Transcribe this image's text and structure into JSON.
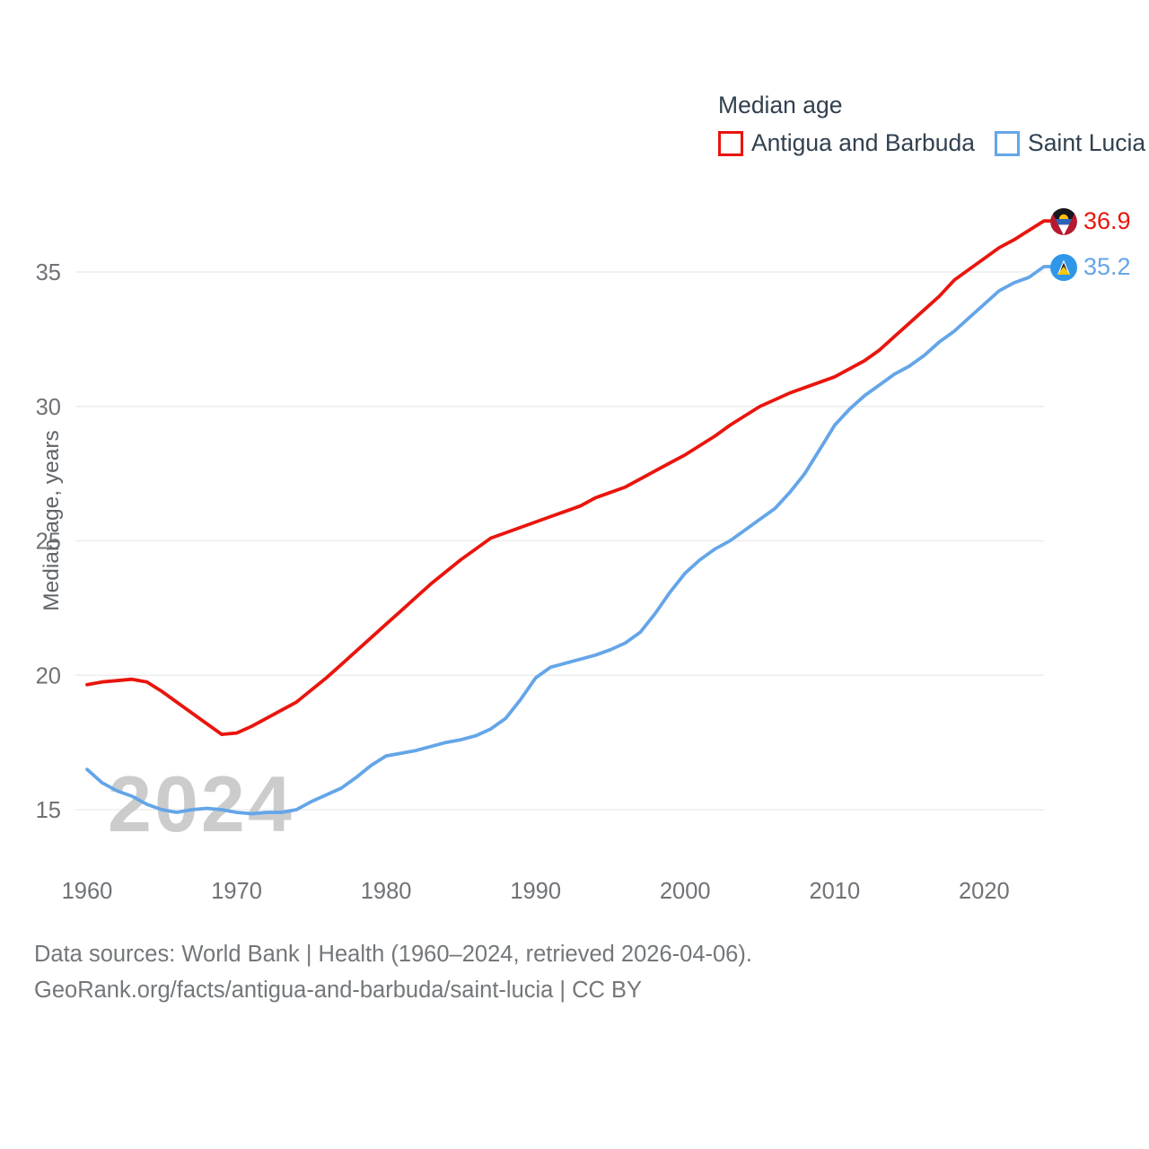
{
  "watermark": "2024",
  "colors": {
    "grid": "#ededed",
    "tick_text": "#6f7276",
    "heading_text": "#31404f",
    "footer_text": "#73777a",
    "watermark_text": "#c4c4c4",
    "antigua_red": "#e9150d",
    "saint_lucia_blue": "#64a5e8"
  },
  "footer": {
    "line1": "Data sources: World Bank | Health (1960–2024, retrieved 2026-04-06).",
    "line2": "GeoRank.org/facts/antigua-and-barbuda/saint-lucia | CC BY"
  },
  "chart_data": {
    "type": "line",
    "title": "Median age",
    "xlabel": "",
    "ylabel": "Median age, years",
    "x_start": 1960,
    "x_end": 2024,
    "x_ticks": [
      1960,
      1970,
      1980,
      1990,
      2000,
      2010,
      2020
    ],
    "y_ticks": [
      15,
      20,
      25,
      30,
      35
    ],
    "ylim": [
      13.6,
      38.2
    ],
    "grid": "horizontal",
    "legend_position": "top-right",
    "series": [
      {
        "name": "Antigua and Barbuda",
        "color": "#e9150d",
        "end_label": "36.9",
        "end_value": 36.9,
        "values": [
          19.65,
          19.75,
          19.8,
          19.85,
          19.75,
          19.4,
          19.0,
          18.6,
          18.2,
          17.8,
          17.85,
          18.1,
          18.4,
          18.7,
          19.0,
          19.45,
          19.9,
          20.4,
          20.9,
          21.4,
          21.9,
          22.4,
          22.9,
          23.4,
          23.85,
          24.3,
          24.7,
          25.1,
          25.3,
          25.5,
          25.7,
          25.9,
          26.1,
          26.3,
          26.6,
          26.8,
          27.0,
          27.3,
          27.6,
          27.9,
          28.2,
          28.55,
          28.9,
          29.3,
          29.65,
          30.0,
          30.25,
          30.5,
          30.7,
          30.9,
          31.1,
          31.4,
          31.7,
          32.1,
          32.6,
          33.1,
          33.6,
          34.1,
          34.7,
          35.1,
          35.5,
          35.9,
          36.2,
          36.55,
          36.9
        ]
      },
      {
        "name": "Saint Lucia",
        "color": "#64a5e8",
        "end_label": "35.2",
        "end_value": 35.2,
        "values": [
          16.5,
          16.0,
          15.7,
          15.5,
          15.2,
          15.0,
          14.9,
          15.0,
          15.05,
          15.0,
          14.9,
          14.85,
          14.9,
          14.9,
          15.0,
          15.3,
          15.55,
          15.8,
          16.2,
          16.65,
          17.0,
          17.1,
          17.2,
          17.35,
          17.5,
          17.6,
          17.75,
          18.0,
          18.4,
          19.1,
          19.9,
          20.3,
          20.45,
          20.6,
          20.75,
          20.95,
          21.2,
          21.6,
          22.3,
          23.1,
          23.8,
          24.3,
          24.7,
          25.0,
          25.4,
          25.8,
          26.2,
          26.8,
          27.5,
          28.4,
          29.3,
          29.9,
          30.4,
          30.8,
          31.2,
          31.5,
          31.9,
          32.4,
          32.8,
          33.3,
          33.8,
          34.3,
          34.6,
          34.8,
          35.2
        ]
      }
    ]
  }
}
